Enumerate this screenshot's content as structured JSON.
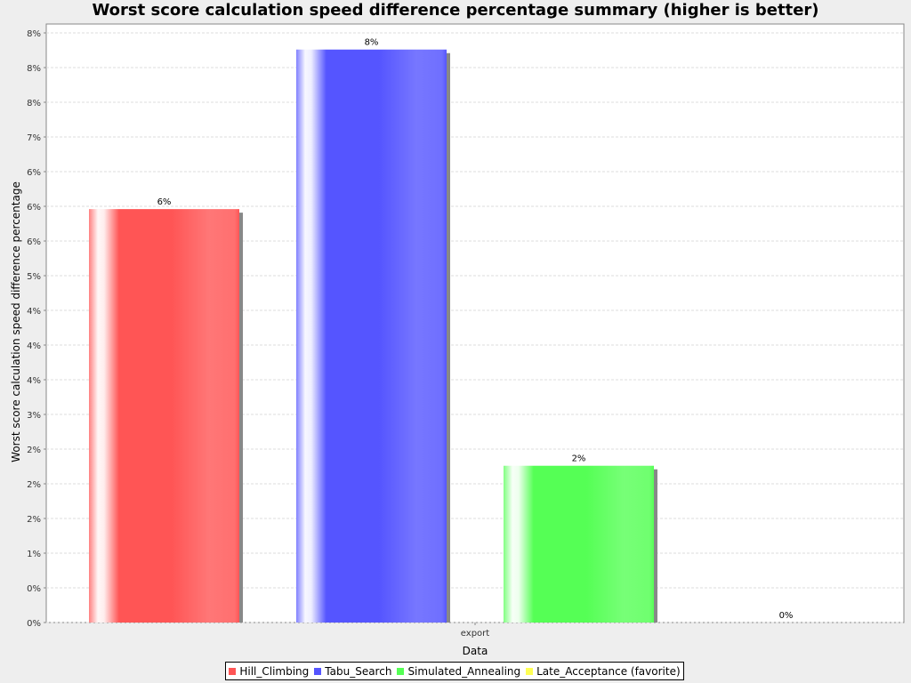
{
  "chart_data": {
    "type": "bar",
    "title": "Worst score calculation speed difference percentage summary (higher is better)",
    "xlabel": "Data",
    "ylabel": "Worst score calculation speed difference percentage",
    "categories": [
      "export"
    ],
    "series": [
      {
        "name": "Hill_Climbing",
        "values": [
          5.96
        ],
        "label": "6%",
        "color": "#ff5555"
      },
      {
        "name": "Tabu_Search",
        "values": [
          8.26
        ],
        "label": "8%",
        "color": "#5555ff"
      },
      {
        "name": "Simulated_Annealing",
        "values": [
          2.26
        ],
        "label": "2%",
        "color": "#55ff55"
      },
      {
        "name": "Late_Acceptance (favorite)",
        "values": [
          0
        ],
        "label": "0%",
        "color": "#ffff55"
      }
    ],
    "ylim": [
      0,
      8.5
    ],
    "yticks": [
      0,
      0.5,
      1,
      1.5,
      2,
      2.5,
      3,
      3.5,
      4,
      4.5,
      5,
      5.5,
      6,
      6.5,
      7,
      7.5,
      8,
      8.5
    ],
    "ytick_labels": [
      "0%",
      "0%",
      "1%",
      "2%",
      "2%",
      "2%",
      "3%",
      "4%",
      "4%",
      "4%",
      "5%",
      "6%",
      "6%",
      "6%",
      "7%",
      "8%",
      "8%",
      "8%"
    ],
    "grid": true,
    "legend": "bottom"
  }
}
